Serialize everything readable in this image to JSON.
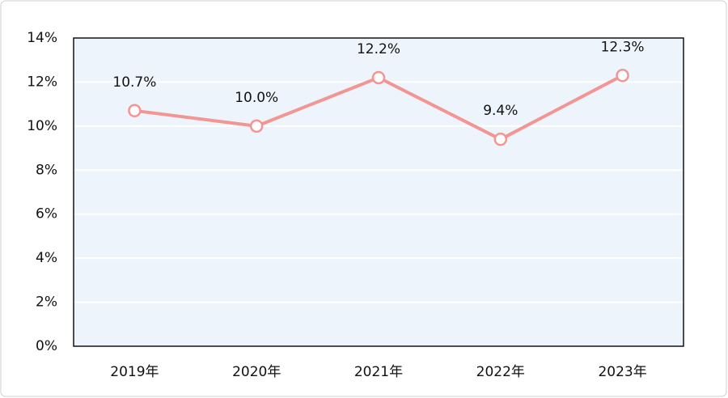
{
  "chart_data": {
    "type": "line",
    "categories": [
      "2019年",
      "2020年",
      "2021年",
      "2022年",
      "2023年"
    ],
    "values": [
      10.7,
      10.0,
      12.2,
      9.4,
      12.3
    ],
    "value_labels": [
      "10.7%",
      "10.0%",
      "12.2%",
      "9.4%",
      "12.3%"
    ],
    "color": "#f39593",
    "ylim": [
      0,
      14
    ],
    "yticks": [
      {
        "value": 0,
        "label": "0%"
      },
      {
        "value": 2,
        "label": "2%"
      },
      {
        "value": 4,
        "label": "4%"
      },
      {
        "value": 6,
        "label": "6%"
      },
      {
        "value": 8,
        "label": "8%"
      },
      {
        "value": 10,
        "label": "10%"
      },
      {
        "value": 12,
        "label": "12%"
      },
      {
        "value": 14,
        "label": "14%"
      }
    ],
    "grid": true
  }
}
